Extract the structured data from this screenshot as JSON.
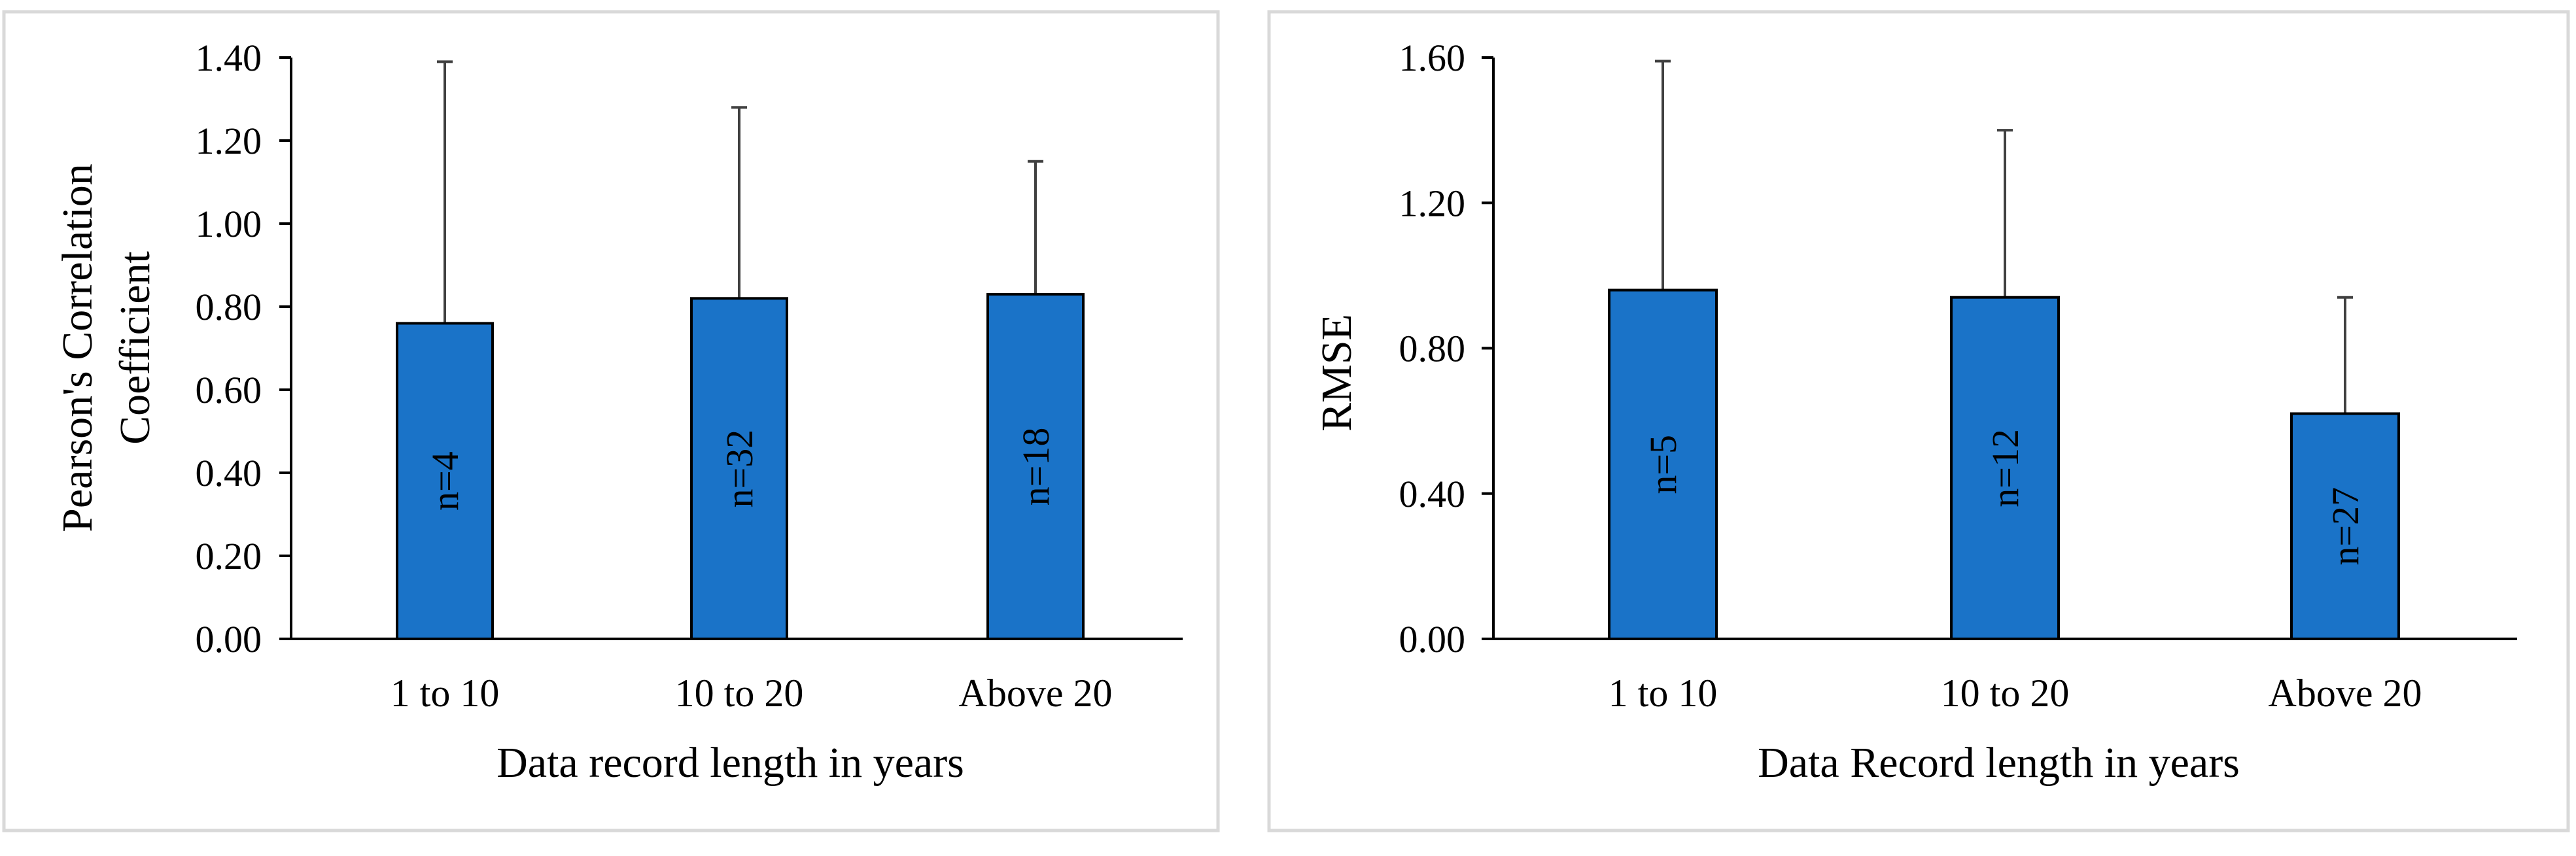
{
  "chart_data": [
    {
      "type": "bar",
      "categories": [
        "1 to 10",
        "10 to 20",
        "Above 20"
      ],
      "values": [
        0.76,
        0.82,
        0.83
      ],
      "error_upper": [
        1.39,
        1.28,
        1.15
      ],
      "bar_labels": [
        "n=4",
        "n=32",
        "n=18"
      ],
      "ylim": [
        0,
        1.4
      ],
      "yticks": [
        "0.00",
        "0.20",
        "0.40",
        "0.60",
        "0.80",
        "1.00",
        "1.20",
        "1.40"
      ],
      "xlabel": "Data record  length  in years",
      "ylabel_lines": [
        "Pearson's  Correlation",
        "Coefficient"
      ],
      "bar_color": "#1a73c8",
      "grid": false,
      "legend": "none"
    },
    {
      "type": "bar",
      "categories": [
        "1 to 10",
        "10 to 20",
        "Above 20"
      ],
      "values": [
        0.96,
        0.94,
        0.62
      ],
      "error_upper": [
        1.59,
        1.4,
        0.94
      ],
      "bar_labels": [
        "n=5",
        "n=12",
        "n=27"
      ],
      "ylim": [
        0,
        1.6
      ],
      "yticks": [
        "0.00",
        "0.40",
        "0.80",
        "1.20",
        "1.60"
      ],
      "xlabel": "Data Record  length  in years",
      "ylabel_lines": [
        "RMSE"
      ],
      "bar_color": "#1a73c8",
      "grid": false,
      "legend": "none"
    }
  ]
}
